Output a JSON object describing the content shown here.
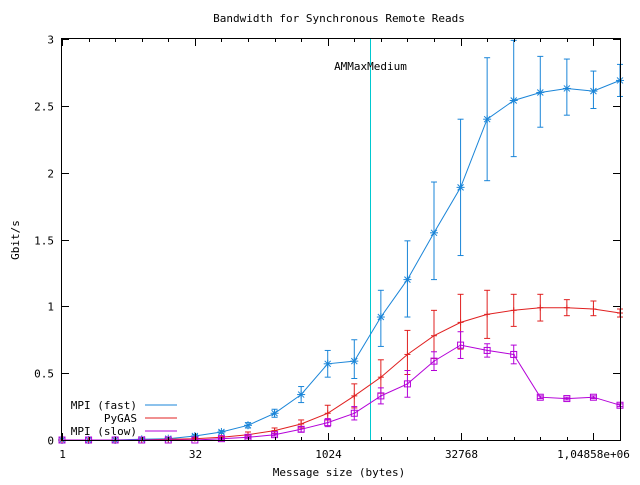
{
  "chart_data": {
    "type": "line",
    "title": "Bandwidth for Synchronous Remote Reads",
    "xlabel": "Message size (bytes)",
    "ylabel": "Gbit/s",
    "x_scale": "log2",
    "x_range": [
      1,
      2097152
    ],
    "ylim": [
      0,
      3
    ],
    "x_ticks": [
      {
        "value": 1,
        "label": "1"
      },
      {
        "value": 32,
        "label": "32"
      },
      {
        "value": 1024,
        "label": "1024"
      },
      {
        "value": 32768,
        "label": "32768"
      },
      {
        "value": 1048576,
        "label": "1,04858e+06"
      }
    ],
    "y_ticks": [
      {
        "value": 0,
        "label": "0"
      },
      {
        "value": 0.5,
        "label": "0.5"
      },
      {
        "value": 1,
        "label": "1"
      },
      {
        "value": 1.5,
        "label": "1.5"
      },
      {
        "value": 2,
        "label": "2"
      },
      {
        "value": 2.5,
        "label": "2.5"
      },
      {
        "value": 3,
        "label": "3"
      }
    ],
    "grid": false,
    "legend_position": "bottom-left",
    "annotation": {
      "label": "AMMaxMedium",
      "x": 3072,
      "color": "#00c8d0"
    },
    "series": [
      {
        "name": "MPI (fast)",
        "color": "#1a85d8",
        "marker": "star",
        "points": [
          [
            1,
            0.0
          ],
          [
            2,
            0.0
          ],
          [
            4,
            0.0
          ],
          [
            8,
            0.005
          ],
          [
            16,
            0.01
          ],
          [
            32,
            0.03
          ],
          [
            64,
            0.06
          ],
          [
            128,
            0.11
          ],
          [
            256,
            0.2
          ],
          [
            512,
            0.34
          ],
          [
            1024,
            0.57
          ],
          [
            2048,
            0.59
          ],
          [
            4096,
            0.92
          ],
          [
            8192,
            1.2
          ],
          [
            16384,
            1.55
          ],
          [
            32768,
            1.89
          ],
          [
            65536,
            2.4
          ],
          [
            131072,
            2.54
          ],
          [
            262144,
            2.6
          ],
          [
            524288,
            2.63
          ],
          [
            1048576,
            2.61
          ],
          [
            2097152,
            2.69
          ]
        ],
        "errors": [
          [
            0,
            0
          ],
          [
            0,
            0
          ],
          [
            0,
            0
          ],
          [
            0.005,
            0.005
          ],
          [
            0.01,
            0.01
          ],
          [
            0.01,
            0.01
          ],
          [
            0.01,
            0.01
          ],
          [
            0.02,
            0.02
          ],
          [
            0.03,
            0.03
          ],
          [
            0.06,
            0.06
          ],
          [
            0.1,
            0.1
          ],
          [
            0.13,
            0.16
          ],
          [
            0.22,
            0.2
          ],
          [
            0.28,
            0.29
          ],
          [
            0.35,
            0.38
          ],
          [
            0.51,
            0.51
          ],
          [
            0.46,
            0.46
          ],
          [
            0.42,
            0.45
          ],
          [
            0.26,
            0.27
          ],
          [
            0.2,
            0.22
          ],
          [
            0.13,
            0.15
          ],
          [
            0.12,
            0.12
          ]
        ]
      },
      {
        "name": "PyGAS",
        "color": "#e02020",
        "marker": "cross",
        "points": [
          [
            1,
            0.0
          ],
          [
            2,
            0.0
          ],
          [
            4,
            0.0
          ],
          [
            8,
            0.0
          ],
          [
            16,
            0.005
          ],
          [
            32,
            0.01
          ],
          [
            64,
            0.02
          ],
          [
            128,
            0.04
          ],
          [
            256,
            0.07
          ],
          [
            512,
            0.12
          ],
          [
            1024,
            0.2
          ],
          [
            2048,
            0.33
          ],
          [
            4096,
            0.47
          ],
          [
            8192,
            0.64
          ],
          [
            16384,
            0.78
          ],
          [
            32768,
            0.88
          ],
          [
            65536,
            0.94
          ],
          [
            131072,
            0.97
          ],
          [
            262144,
            0.99
          ],
          [
            524288,
            0.99
          ],
          [
            1048576,
            0.98
          ],
          [
            2097152,
            0.95
          ]
        ],
        "errors": [
          [
            0,
            0
          ],
          [
            0,
            0
          ],
          [
            0,
            0
          ],
          [
            0,
            0
          ],
          [
            0,
            0
          ],
          [
            0.005,
            0.005
          ],
          [
            0.01,
            0.01
          ],
          [
            0.02,
            0.02
          ],
          [
            0.02,
            0.02
          ],
          [
            0.03,
            0.03
          ],
          [
            0.05,
            0.06
          ],
          [
            0.09,
            0.09
          ],
          [
            0.12,
            0.13
          ],
          [
            0.15,
            0.18
          ],
          [
            0.17,
            0.19
          ],
          [
            0.2,
            0.21
          ],
          [
            0.18,
            0.18
          ],
          [
            0.12,
            0.12
          ],
          [
            0.1,
            0.1
          ],
          [
            0.06,
            0.06
          ],
          [
            0.05,
            0.06
          ],
          [
            0.03,
            0.03
          ]
        ]
      },
      {
        "name": "MPI (slow)",
        "color": "#b400d8",
        "marker": "square",
        "points": [
          [
            1,
            0.0
          ],
          [
            2,
            0.0
          ],
          [
            4,
            0.0
          ],
          [
            8,
            0.0
          ],
          [
            16,
            0.0
          ],
          [
            32,
            0.0
          ],
          [
            64,
            0.01
          ],
          [
            128,
            0.02
          ],
          [
            256,
            0.04
          ],
          [
            512,
            0.08
          ],
          [
            1024,
            0.13
          ],
          [
            2048,
            0.2
          ],
          [
            4096,
            0.33
          ],
          [
            8192,
            0.42
          ],
          [
            16384,
            0.59
          ],
          [
            32768,
            0.71
          ],
          [
            65536,
            0.67
          ],
          [
            131072,
            0.64
          ],
          [
            262144,
            0.32
          ],
          [
            524288,
            0.31
          ],
          [
            1048576,
            0.32
          ],
          [
            2097152,
            0.26
          ]
        ],
        "errors": [
          [
            0,
            0
          ],
          [
            0,
            0
          ],
          [
            0,
            0
          ],
          [
            0,
            0
          ],
          [
            0,
            0
          ],
          [
            0,
            0
          ],
          [
            0.005,
            0.005
          ],
          [
            0.01,
            0.01
          ],
          [
            0.01,
            0.01
          ],
          [
            0.02,
            0.02
          ],
          [
            0.03,
            0.03
          ],
          [
            0.05,
            0.05
          ],
          [
            0.06,
            0.06
          ],
          [
            0.1,
            0.1
          ],
          [
            0.07,
            0.07
          ],
          [
            0.1,
            0.1
          ],
          [
            0.05,
            0.05
          ],
          [
            0.07,
            0.07
          ],
          [
            0.01,
            0.01
          ],
          [
            0.01,
            0.01
          ],
          [
            0.01,
            0.01
          ],
          [
            0.01,
            0.01
          ]
        ]
      }
    ]
  }
}
